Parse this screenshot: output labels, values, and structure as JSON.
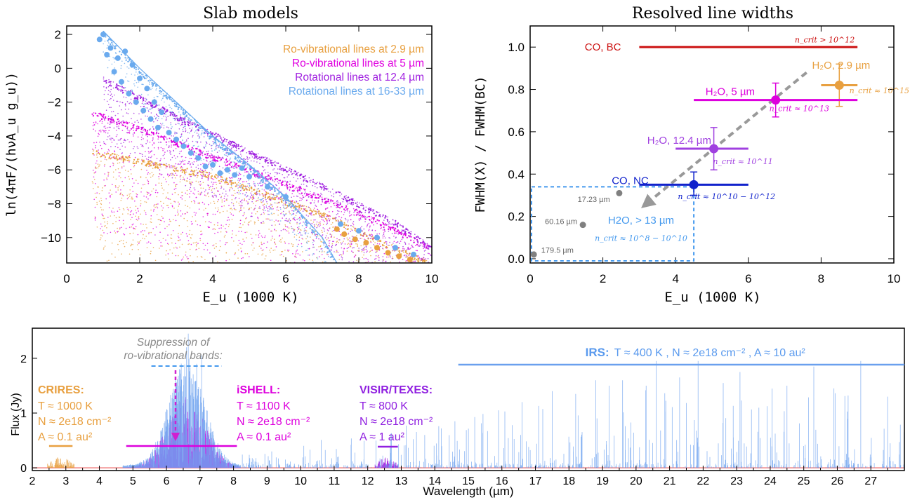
{
  "chart_data": [
    {
      "type": "scatter",
      "title": "Slab models",
      "xlabel": "E_u (1000 K)",
      "ylabel": "ln(4πF/(hνA_u g_u))",
      "xlim": [
        0,
        10
      ],
      "ylim": [
        -11.5,
        2.5
      ],
      "xticks": [
        0,
        2,
        4,
        6,
        8,
        10
      ],
      "yticks": [
        2,
        0,
        -2,
        -4,
        -6,
        -8,
        -10
      ],
      "legend_placement": "top-right",
      "series": [
        {
          "name": "Ro-vibrational lines at 2.9 µm",
          "color": "#e8a040",
          "trend": {
            "x": [
              0.7,
              4.0,
              7.0,
              10.0
            ],
            "y": [
              -4.8,
              -6.2,
              -8.5,
              -11.5
            ]
          },
          "spread": 6.5
        },
        {
          "name": "Ro-vibrational lines at 5 µm",
          "color": "#e000e0",
          "trend": {
            "x": [
              0.7,
              2.0,
              4.0,
              6.0,
              8.0,
              10.0
            ],
            "y": [
              -2.5,
              -3.4,
              -5.1,
              -6.7,
              -8.4,
              -10.5
            ]
          },
          "spread": 7.0
        },
        {
          "name": "Rotational lines at 12.4 µm",
          "color": "#a020e0",
          "trend": {
            "x": [
              1.0,
              3.0,
              5.0,
              7.0,
              9.0,
              10.0
            ],
            "y": [
              -0.5,
              -2.7,
              -4.8,
              -6.8,
              -9.0,
              -10.5
            ]
          },
          "spread": 4.0
        },
        {
          "name": "Rotational lines at 16-33 µm",
          "color": "#6aaaee",
          "trend": {
            "x": [
              1.0,
              2.0,
              3.0,
              4.0,
              5.0,
              6.0,
              7.0,
              7.4
            ],
            "y": [
              2.2,
              0.0,
              -2.0,
              -4.0,
              -5.7,
              -7.6,
              -10.0,
              -11.5
            ]
          },
          "large_points": {
            "x": [
              0.9,
              1.0,
              1.1,
              1.2,
              1.3,
              1.4,
              1.5,
              1.6,
              1.7,
              1.8,
              1.9,
              2.0,
              2.1,
              2.2,
              2.3,
              2.4,
              2.5,
              2.6,
              2.8,
              3.0,
              3.2,
              3.4,
              3.6,
              3.8,
              4.0,
              4.2,
              4.4,
              4.6,
              4.8,
              5.0,
              5.5,
              6.0,
              7.5,
              8.0,
              8.5,
              9.0,
              9.5
            ],
            "y": [
              1.7,
              2.0,
              0.8,
              1.2,
              -0.2,
              0.6,
              -0.8,
              1.0,
              -1.5,
              0.2,
              -2.0,
              -0.6,
              -2.5,
              -1.2,
              -3.0,
              -2.0,
              -3.5,
              -2.6,
              -3.8,
              -4.2,
              -4.6,
              -5.0,
              -5.3,
              -5.8,
              -5.7,
              -6.2,
              -6.0,
              -6.3,
              -5.9,
              -6.4,
              -7.0,
              -7.6,
              -9.2,
              -9.6,
              -10.0,
              -10.6,
              -11.0
            ]
          }
        }
      ]
    },
    {
      "type": "scatter",
      "title": "Resolved line widths",
      "xlabel": "E_u (1000 K)",
      "ylabel": "FWHM(X) / FWHM(BC)",
      "xlim": [
        0,
        10
      ],
      "ylim": [
        -0.02,
        1.1
      ],
      "xticks": [
        0,
        2,
        4,
        6,
        8,
        10
      ],
      "yticks": [
        0.0,
        0.2,
        0.4,
        0.6,
        0.8,
        1.0
      ],
      "points": [
        {
          "name": "CO, BC",
          "x": 6.0,
          "y": 1.0,
          "xerr": [
            3.0,
            9.0
          ],
          "yerr": null,
          "color": "#cc1111",
          "ncrit": "n_crit > 10^12"
        },
        {
          "name": "H2O, 2.9 µm",
          "x": 8.5,
          "y": 0.82,
          "xerr": [
            8.0,
            9.0
          ],
          "yerr": [
            0.72,
            0.92
          ],
          "color": "#e8a040",
          "ncrit": "n_crit ≈ 10^15"
        },
        {
          "name": "H2O, 5 µm",
          "x": 6.75,
          "y": 0.75,
          "xerr": [
            4.5,
            9.0
          ],
          "yerr": [
            0.67,
            0.83
          ],
          "color": "#dd00dd",
          "ncrit": "n_crit ≈ 10^13"
        },
        {
          "name": "H2O, 12.4 µm",
          "x": 5.05,
          "y": 0.52,
          "xerr": [
            4.0,
            6.0
          ],
          "yerr": [
            0.42,
            0.62
          ],
          "color": "#a040e0",
          "ncrit": "n_crit ≈ 10^11"
        },
        {
          "name": "CO, NC",
          "x": 4.5,
          "y": 0.35,
          "xerr": [
            3.0,
            6.0
          ],
          "yerr": [
            0.3,
            0.41
          ],
          "color": "#1122cc",
          "ncrit": "n_crit ≈ 10^10 − 10^12"
        },
        {
          "name": "17.23 µm",
          "x": 2.45,
          "y": 0.31,
          "color": "#808080"
        },
        {
          "name": "60.16 µm",
          "x": 1.45,
          "y": 0.16,
          "color": "#808080"
        },
        {
          "name": "179.5 µm",
          "x": 0.1,
          "y": 0.02,
          "color": "#808080"
        }
      ],
      "box": {
        "label": "H2O, > 13 µm",
        "ncrit": "n_crit ≈ 10^8 − 10^10",
        "x": [
          0.0,
          4.5
        ],
        "y": [
          -0.01,
          0.34
        ],
        "color": "#4499ee"
      },
      "arrow": {
        "from": [
          7.6,
          0.88
        ],
        "to": [
          3.2,
          0.26
        ],
        "color": "#999999"
      }
    },
    {
      "type": "line",
      "xlabel": "Wavelength (µm)",
      "ylabel": "Flux (Jy)",
      "xlim": [
        2,
        28
      ],
      "ylim": [
        -0.05,
        2.55
      ],
      "xticks": [
        2,
        3,
        4,
        5,
        6,
        7,
        8,
        9,
        10,
        11,
        12,
        13,
        14,
        15,
        16,
        17,
        18,
        19,
        20,
        21,
        22,
        23,
        24,
        25,
        26,
        27
      ],
      "yticks": [
        0,
        1,
        2
      ],
      "series": [
        {
          "name": "CRIRES",
          "color": "#e8a040",
          "range": [
            2.45,
            3.25
          ],
          "peak": 0.2
        },
        {
          "name": "iSHELL",
          "color": "#e000e0",
          "range": [
            4.7,
            8.2
          ],
          "peak": 1.3
        },
        {
          "name": "VISIR/TEXES",
          "color": "#a020e0",
          "range": [
            12.2,
            12.9
          ],
          "peak": 0.2
        },
        {
          "name": "IRS",
          "color": "#6aa0ee",
          "range": [
            4.7,
            28.0
          ],
          "peak": 2.5
        }
      ],
      "annotations": {
        "suppression": "Suppression of\nro-vibrational bands:",
        "crires": {
          "title": "CRIRES:",
          "T": "T ≈ 1000 K",
          "N": "N ≈ 2e18 cm⁻²",
          "A": "A ≈ 0.1 au²",
          "bar": [
            2.5,
            3.2
          ]
        },
        "ishell": {
          "title": "iSHELL:",
          "T": "T ≈ 1100 K",
          "N": "N ≈ 2e18 cm⁻²",
          "A": "A ≈ 0.1 au²",
          "bar": [
            4.8,
            8.1
          ]
        },
        "visir": {
          "title": "VISIR/TEXES:",
          "T": "T ≈ 800 K",
          "N": "N ≈ 2e18 cm⁻²",
          "A": "A ≈ 1 au²",
          "bar": [
            12.3,
            12.9
          ]
        },
        "irs": {
          "title": "IRS:",
          "text": "T ≈ 400 K , N ≈ 2e18 cm⁻² , A ≈ 10 au²",
          "bar": [
            14.7,
            28.0
          ]
        },
        "suppression_bar": [
          5.55,
          7.65
        ]
      }
    }
  ]
}
